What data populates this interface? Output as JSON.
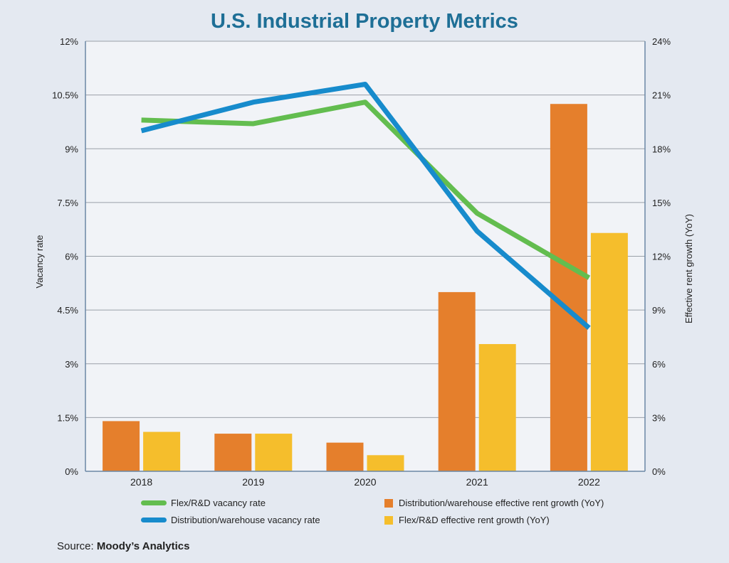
{
  "chart_data": {
    "type": "bar+line",
    "title": "U.S. Industrial Property Metrics",
    "categories": [
      "2018",
      "2019",
      "2020",
      "2021",
      "2022"
    ],
    "left_axis": {
      "label": "Vacancy rate",
      "ylim": [
        0,
        12
      ],
      "ticks": [
        "0%",
        "1.5%",
        "3%",
        "4.5%",
        "6%",
        "7.5%",
        "9%",
        "10.5%",
        "12%"
      ]
    },
    "right_axis": {
      "label": "Effective rent growth (YoY)",
      "ylim": [
        0,
        24
      ],
      "ticks": [
        "0%",
        "3%",
        "6%",
        "9%",
        "12%",
        "15%",
        "18%",
        "21%",
        "24%"
      ]
    },
    "grid": true,
    "series": [
      {
        "name": "Distribution/warehouse effective rent growth (YoY)",
        "type": "bar",
        "axis": "right",
        "color": "#e57f2c",
        "values": [
          2.8,
          2.1,
          1.6,
          10.0,
          20.5
        ]
      },
      {
        "name": "Flex/R&D effective rent growth (YoY)",
        "type": "bar",
        "axis": "right",
        "color": "#f5be2c",
        "values": [
          2.2,
          2.1,
          0.9,
          7.1,
          13.3
        ]
      },
      {
        "name": "Flex/R&D vacancy rate",
        "type": "line",
        "axis": "left",
        "color": "#63bd4f",
        "values": [
          9.8,
          9.7,
          10.3,
          7.2,
          5.4
        ]
      },
      {
        "name": "Distribution/warehouse vacancy rate",
        "type": "line",
        "axis": "left",
        "color": "#178bcc",
        "values": [
          9.5,
          10.3,
          10.8,
          6.7,
          4.0
        ]
      }
    ],
    "legend_position": "bottom"
  },
  "legend": {
    "flex_vacancy": "Flex/R&D vacancy rate",
    "dist_vacancy": "Distribution/warehouse vacancy rate",
    "dist_rent": "Distribution/warehouse effective rent growth (YoY)",
    "flex_rent": "Flex/R&D effective rent growth (YoY)"
  },
  "source": {
    "prefix": "Source: ",
    "name": "Moody’s Analytics"
  }
}
